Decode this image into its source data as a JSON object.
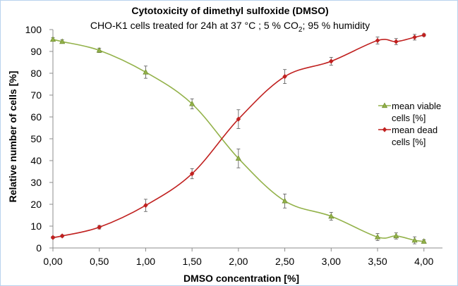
{
  "chart_data": {
    "type": "line",
    "title": "Cytotoxicity of dimethyl sulfoxide (DMSO)",
    "subtitle_parts": [
      "CHO-K1 cells treated for 24h at 37 °C ; 5 % CO",
      "2",
      ";  95 % humidity"
    ],
    "xlabel": "DMSO concentration [%]",
    "ylabel": "Relative number of cells [%]",
    "xlim": [
      0,
      4.2
    ],
    "ylim": [
      0,
      100
    ],
    "x_ticks": [
      0,
      0.5,
      1.0,
      1.5,
      2.0,
      2.5,
      3.0,
      3.5,
      4.0
    ],
    "x_tick_labels": [
      "0,00",
      "0,50",
      "1,00",
      "1,50",
      "2,00",
      "2,50",
      "3,00",
      "3,50",
      "4,00"
    ],
    "y_ticks": [
      0,
      10,
      20,
      30,
      40,
      50,
      60,
      70,
      80,
      90,
      100
    ],
    "y_tick_labels": [
      "0",
      "10",
      "20",
      "30",
      "40",
      "50",
      "60",
      "70",
      "80",
      "90",
      "100"
    ],
    "grid": false,
    "legend_position": "right",
    "x": [
      0.0,
      0.1,
      0.5,
      1.0,
      1.5,
      2.0,
      2.5,
      3.0,
      3.5,
      3.7,
      3.9,
      4.0
    ],
    "series": [
      {
        "name_lines": [
          "mean viable",
          "cells [%]"
        ],
        "marker": "triangle",
        "color": "#93b24a",
        "values": [
          95.5,
          94.5,
          90.5,
          80.5,
          66.0,
          41.0,
          21.5,
          14.5,
          5.0,
          5.5,
          3.5,
          3.0
        ],
        "errors": [
          0.8,
          0.8,
          1.0,
          2.8,
          2.3,
          4.3,
          3.2,
          1.8,
          1.6,
          1.4,
          1.6,
          0.8
        ]
      },
      {
        "name_lines": [
          "mean dead",
          "cells [%]"
        ],
        "marker": "diamond",
        "color": "#c0201f",
        "values": [
          4.8,
          5.5,
          9.5,
          19.5,
          34.0,
          59.0,
          78.5,
          85.5,
          95.0,
          94.5,
          96.5,
          97.5
        ],
        "errors": [
          0.5,
          0.5,
          0.8,
          2.8,
          2.3,
          4.3,
          3.2,
          1.8,
          1.6,
          1.4,
          1.3,
          0.6
        ]
      }
    ]
  }
}
